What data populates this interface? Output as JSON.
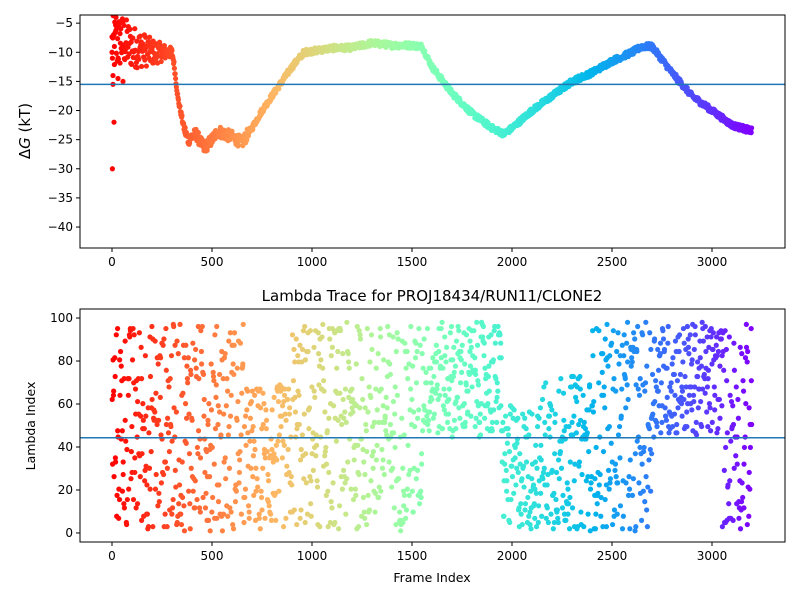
{
  "chart_data": [
    {
      "type": "scatter",
      "title": "",
      "xlabel": "",
      "ylabel_prefix": "Δ",
      "ylabel_var": "G",
      "ylabel_suffix": " (kT)",
      "xlim": [
        -160,
        3365
      ],
      "ylim": [
        -43.6,
        -3.6
      ],
      "xticks": [
        0,
        500,
        1000,
        1500,
        2000,
        2500,
        3000
      ],
      "xtick_labels": [
        "0",
        "500",
        "1000",
        "1500",
        "2000",
        "2500",
        "3000"
      ],
      "yticks": [
        -5,
        -10,
        -15,
        -20,
        -25,
        -30,
        -35,
        -40
      ],
      "ytick_labels": [
        "−5",
        "−10",
        "−15",
        "−20",
        "−25",
        "−30",
        "−35",
        "−40"
      ],
      "hline": -15.5,
      "hline_color": "#1f77b4",
      "colormap": "rainbow_r (by frame index)",
      "n_frames": 3200,
      "trace_keypoints": [
        [
          0,
          -9
        ],
        [
          50,
          -8
        ],
        [
          100,
          -9
        ],
        [
          200,
          -10
        ],
        [
          300,
          -10
        ],
        [
          310,
          -12
        ],
        [
          330,
          -18
        ],
        [
          360,
          -23
        ],
        [
          380,
          -25
        ],
        [
          420,
          -24
        ],
        [
          460,
          -26.5
        ],
        [
          500,
          -25
        ],
        [
          530,
          -23.5
        ],
        [
          560,
          -24
        ],
        [
          600,
          -24.5
        ],
        [
          650,
          -25.5
        ],
        [
          700,
          -23
        ],
        [
          750,
          -20
        ],
        [
          800,
          -17.5
        ],
        [
          850,
          -15
        ],
        [
          900,
          -12.5
        ],
        [
          960,
          -10
        ],
        [
          1000,
          -9.8
        ],
        [
          1100,
          -9.3
        ],
        [
          1200,
          -9.2
        ],
        [
          1300,
          -8.4
        ],
        [
          1400,
          -8.8
        ],
        [
          1500,
          -8.8
        ],
        [
          1550,
          -9
        ],
        [
          1600,
          -12.5
        ],
        [
          1700,
          -17
        ],
        [
          1800,
          -20.5
        ],
        [
          1900,
          -23
        ],
        [
          1960,
          -24
        ],
        [
          2000,
          -23
        ],
        [
          2100,
          -20
        ],
        [
          2200,
          -17.5
        ],
        [
          2300,
          -15
        ],
        [
          2400,
          -13.5
        ],
        [
          2500,
          -11.5
        ],
        [
          2600,
          -10
        ],
        [
          2650,
          -9
        ],
        [
          2700,
          -9
        ],
        [
          2800,
          -13.5
        ],
        [
          2900,
          -17.5
        ],
        [
          3000,
          -20
        ],
        [
          3100,
          -22.5
        ],
        [
          3200,
          -23.5
        ]
      ],
      "outliers": [
        [
          2,
          -30
        ],
        [
          10,
          -22
        ],
        [
          5,
          -15.5
        ],
        [
          0,
          -10
        ],
        [
          5,
          -14
        ],
        [
          12,
          -9
        ],
        [
          20,
          -4
        ],
        [
          30,
          -14.5
        ],
        [
          40,
          -6.8
        ],
        [
          55,
          -15
        ]
      ]
    },
    {
      "type": "scatter",
      "title": "Lambda Trace for PROJ18434/RUN11/CLONE2",
      "xlabel": "Frame Index",
      "ylabel": "Lambda Index",
      "xlim": [
        -160,
        3365
      ],
      "ylim": [
        -4.2,
        104.2
      ],
      "xticks": [
        0,
        500,
        1000,
        1500,
        2000,
        2500,
        3000
      ],
      "xtick_labels": [
        "0",
        "500",
        "1000",
        "1500",
        "2000",
        "2500",
        "3000"
      ],
      "yticks": [
        0,
        20,
        40,
        60,
        80,
        100
      ],
      "ytick_labels": [
        "0",
        "20",
        "40",
        "60",
        "80",
        "100"
      ],
      "hline": 44.3,
      "hline_color": "#1f77b4",
      "colormap": "rainbow_r (by frame index)",
      "n_frames": 3200,
      "lambda_envelope": [
        [
          0,
          660,
          0,
          100
        ],
        [
          660,
          900,
          0,
          70
        ],
        [
          900,
          1500,
          0,
          100
        ],
        [
          1500,
          1550,
          0,
          100
        ],
        [
          1550,
          1950,
          45,
          100
        ],
        [
          1950,
          2150,
          0,
          60
        ],
        [
          2150,
          2400,
          0,
          75
        ],
        [
          2400,
          2700,
          0,
          100
        ],
        [
          2700,
          3050,
          45,
          100
        ],
        [
          3050,
          3200,
          0,
          100
        ]
      ]
    }
  ]
}
